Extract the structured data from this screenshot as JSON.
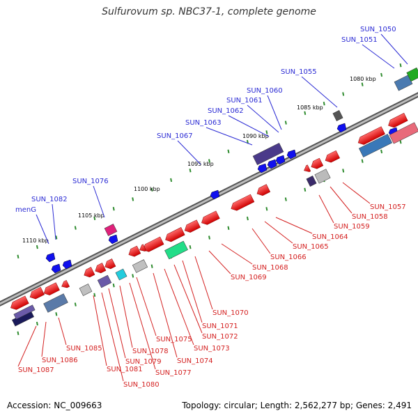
{
  "title": "Sulfurovum sp. NBC37-1, complete genome",
  "footer": {
    "accession": "Accession: NC_009663",
    "topology": "Topology: circular; Length: 2,562,277 bp; Genes: 2,491"
  },
  "kbp_labels": [
    "1080 kbp",
    "1085 kbp",
    "1090 kbp",
    "1095 kbp",
    "1100 kbp",
    "1105 kbp",
    "1110 kbp"
  ],
  "forward_genes": [
    "SUN_1050",
    "SUN_1051",
    "SUN_1055",
    "SUN_1060",
    "SUN_1061",
    "SUN_1062",
    "SUN_1063",
    "SUN_1067",
    "SUN_1076",
    "SUN_1082",
    "menG"
  ],
  "reverse_genes": [
    "SUN_1057",
    "SUN_1058",
    "SUN_1059",
    "SUN_1064",
    "SUN_1065",
    "SUN_1066",
    "SUN_1068",
    "SUN_1069",
    "SUN_1070",
    "SUN_1071",
    "SUN_1072",
    "SUN_1073",
    "SUN_1074",
    "SUN_1075",
    "SUN_1077",
    "SUN_1078",
    "SUN_1079",
    "SUN_1080",
    "SUN_1081",
    "SUN_1085",
    "SUN_1086",
    "SUN_1087"
  ],
  "colors": {
    "forward_label": "#2a2ad4",
    "reverse_label": "#d42020",
    "forward_gene": "#1010ee",
    "reverse_gene": "#ee1010",
    "backbone": "#888888",
    "tick": "#2e8b2e"
  }
}
